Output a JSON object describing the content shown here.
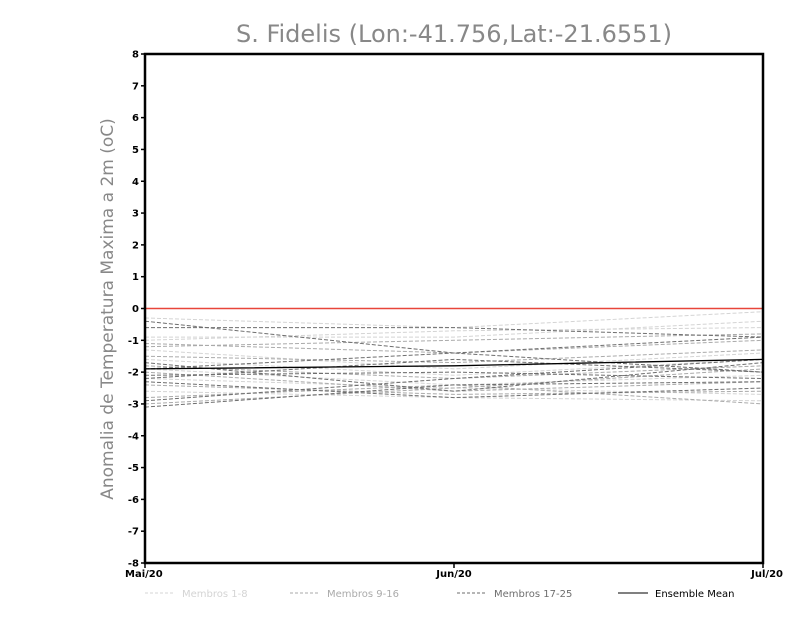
{
  "chart_data": {
    "type": "line",
    "title": "S. Fidelis (Lon:-41.756,Lat:-21.6551)",
    "xlabel": "",
    "ylabel": "Anomalia de Temperatura Maxima a 2m (oC)",
    "categories": [
      "Mai/20",
      "Jun/20",
      "Jul/20"
    ],
    "ylim": [
      -8,
      8
    ],
    "yticks": [
      "8",
      "7",
      "6",
      "5",
      "4",
      "3",
      "2",
      "1",
      "0",
      "-1",
      "-2",
      "-3",
      "-4",
      "-5",
      "-6",
      "-7",
      "-8"
    ],
    "reference_line": {
      "value": 0,
      "color": "#e8463a"
    },
    "legend": [
      {
        "label": "Membros 1-8",
        "color": "#d4d4d4"
      },
      {
        "label": "Membros 9-16",
        "color": "#aaaaaa"
      },
      {
        "label": "Membros 17-25",
        "color": "#6e6e6e"
      },
      {
        "label": "Ensemble Mean",
        "color": "#000000"
      }
    ],
    "series": [
      {
        "name": "Membro 1",
        "group": 0,
        "values": [
          -0.3,
          -0.6,
          -0.1
        ]
      },
      {
        "name": "Membro 2",
        "group": 0,
        "values": [
          -1.0,
          -0.7,
          -0.6
        ]
      },
      {
        "name": "Membro 3",
        "group": 0,
        "values": [
          -1.3,
          -1.9,
          -1.4
        ]
      },
      {
        "name": "Membro 4",
        "group": 0,
        "values": [
          -1.6,
          -2.1,
          -1.6
        ]
      },
      {
        "name": "Membro 5",
        "group": 0,
        "values": [
          -1.9,
          -2.4,
          -2.1
        ]
      },
      {
        "name": "Membro 6",
        "group": 0,
        "values": [
          -2.2,
          -2.5,
          -2.7
        ]
      },
      {
        "name": "Membro 7",
        "group": 0,
        "values": [
          -2.6,
          -2.8,
          -2.9
        ]
      },
      {
        "name": "Membro 8",
        "group": 0,
        "values": [
          -0.9,
          -0.9,
          -0.4
        ]
      },
      {
        "name": "Membro 9",
        "group": 1,
        "values": [
          -1.1,
          -1.4,
          -1.0
        ]
      },
      {
        "name": "Membro 10",
        "group": 1,
        "values": [
          -1.5,
          -1.7,
          -1.3
        ]
      },
      {
        "name": "Membro 11",
        "group": 1,
        "values": [
          -1.8,
          -2.2,
          -1.8
        ]
      },
      {
        "name": "Membro 12",
        "group": 1,
        "values": [
          -2.0,
          -2.6,
          -2.3
        ]
      },
      {
        "name": "Membro 13",
        "group": 1,
        "values": [
          -2.4,
          -2.7,
          -2.6
        ]
      },
      {
        "name": "Membro 14",
        "group": 1,
        "values": [
          -2.8,
          -2.4,
          -3.0
        ]
      },
      {
        "name": "Membro 15",
        "group": 1,
        "values": [
          -3.0,
          -2.5,
          -1.9
        ]
      },
      {
        "name": "Membro 16",
        "group": 1,
        "values": [
          -1.2,
          -1.0,
          -0.8
        ]
      },
      {
        "name": "Membro 17",
        "group": 2,
        "values": [
          -0.4,
          -1.4,
          -2.0
        ]
      },
      {
        "name": "Membro 18",
        "group": 2,
        "values": [
          -0.6,
          -0.6,
          -0.9
        ]
      },
      {
        "name": "Membro 19",
        "group": 2,
        "values": [
          -1.7,
          -2.6,
          -1.7
        ]
      },
      {
        "name": "Membro 20",
        "group": 2,
        "values": [
          -2.1,
          -2.0,
          -2.2
        ]
      },
      {
        "name": "Membro 21",
        "group": 2,
        "values": [
          -2.3,
          -2.8,
          -2.5
        ]
      },
      {
        "name": "Membro 22",
        "group": 2,
        "values": [
          -3.1,
          -2.4,
          -2.3
        ]
      },
      {
        "name": "Membro 23",
        "group": 2,
        "values": [
          -2.9,
          -2.2,
          -1.6
        ]
      },
      {
        "name": "Membro 24",
        "group": 2,
        "values": [
          -1.9,
          -1.4,
          -0.9
        ]
      },
      {
        "name": "Membro 25",
        "group": 2,
        "values": [
          -2.2,
          -1.6,
          -2.0
        ]
      },
      {
        "name": "Ensemble Mean",
        "group": 3,
        "values": [
          -1.9,
          -1.8,
          -1.6
        ]
      }
    ]
  }
}
